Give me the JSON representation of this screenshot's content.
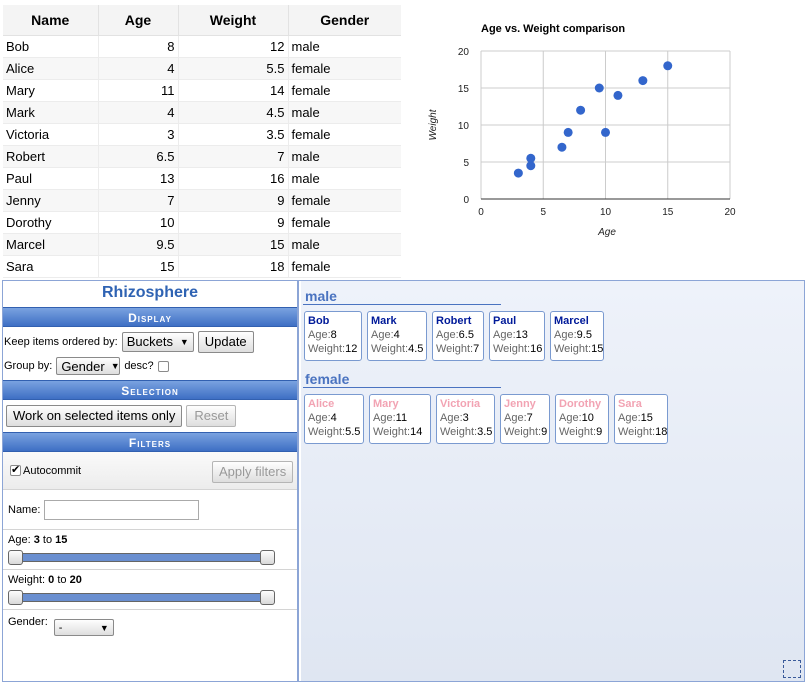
{
  "table": {
    "headers": [
      "Name",
      "Age",
      "Weight",
      "Gender"
    ],
    "rows": [
      [
        "Bob",
        "8",
        "12",
        "male"
      ],
      [
        "Alice",
        "4",
        "5.5",
        "female"
      ],
      [
        "Mary",
        "11",
        "14",
        "female"
      ],
      [
        "Mark",
        "4",
        "4.5",
        "male"
      ],
      [
        "Victoria",
        "3",
        "3.5",
        "female"
      ],
      [
        "Robert",
        "6.5",
        "7",
        "male"
      ],
      [
        "Paul",
        "13",
        "16",
        "male"
      ],
      [
        "Jenny",
        "7",
        "9",
        "female"
      ],
      [
        "Dorothy",
        "10",
        "9",
        "female"
      ],
      [
        "Marcel",
        "9.5",
        "15",
        "male"
      ],
      [
        "Sara",
        "15",
        "18",
        "female"
      ]
    ]
  },
  "chart_data": {
    "type": "scatter",
    "title": "Age vs. Weight comparison",
    "xlabel": "Age",
    "ylabel": "Weight",
    "xlim": [
      0,
      20
    ],
    "ylim": [
      0,
      20
    ],
    "xticks": [
      0,
      5,
      10,
      15,
      20
    ],
    "yticks": [
      0,
      5,
      10,
      15,
      20
    ],
    "grid": true,
    "point_color": "#3366cc",
    "points": [
      {
        "x": 8,
        "y": 12
      },
      {
        "x": 4,
        "y": 5.5
      },
      {
        "x": 11,
        "y": 14
      },
      {
        "x": 4,
        "y": 4.5
      },
      {
        "x": 3,
        "y": 3.5
      },
      {
        "x": 6.5,
        "y": 7
      },
      {
        "x": 13,
        "y": 16
      },
      {
        "x": 7,
        "y": 9
      },
      {
        "x": 10,
        "y": 9
      },
      {
        "x": 9.5,
        "y": 15
      },
      {
        "x": 15,
        "y": 18
      }
    ]
  },
  "rhizo": {
    "title": "Rhizosphere",
    "display": {
      "header": "Display",
      "order_label": "Keep items ordered by:",
      "order_value": "Buckets",
      "update_label": "Update",
      "groupby_label": "Group by:",
      "groupby_value": "Gender",
      "desc_label": "desc?"
    },
    "selection": {
      "header": "Selection",
      "work_label": "Work on selected items only",
      "reset_label": "Reset"
    },
    "filters": {
      "header": "Filters",
      "autocommit_label": "Autocommit",
      "apply_label": "Apply filters",
      "name_label": "Name:",
      "name_value": "",
      "age_label": "Age:",
      "age_min": "3",
      "age_to": "to",
      "age_max": "15",
      "weight_label": "Weight:",
      "weight_min": "0",
      "weight_to": "to",
      "weight_max": "20",
      "gender_label": "Gender:",
      "gender_value": "-"
    },
    "buckets": [
      {
        "label": "male",
        "gender": "male",
        "items": [
          {
            "name": "Bob",
            "age": "8",
            "weight": "12"
          },
          {
            "name": "Mark",
            "age": "4",
            "weight": "4.5"
          },
          {
            "name": "Robert",
            "age": "6.5",
            "weight": "7"
          },
          {
            "name": "Paul",
            "age": "13",
            "weight": "16"
          },
          {
            "name": "Marcel",
            "age": "9.5",
            "weight": "15"
          }
        ]
      },
      {
        "label": "female",
        "gender": "female",
        "items": [
          {
            "name": "Alice",
            "age": "4",
            "weight": "5.5"
          },
          {
            "name": "Mary",
            "age": "11",
            "weight": "14"
          },
          {
            "name": "Victoria",
            "age": "3",
            "weight": "3.5"
          },
          {
            "name": "Jenny",
            "age": "7",
            "weight": "9"
          },
          {
            "name": "Dorothy",
            "age": "10",
            "weight": "9"
          },
          {
            "name": "Sara",
            "age": "15",
            "weight": "18"
          }
        ]
      }
    ],
    "card_age_label": "Age:",
    "card_weight_label": "Weight:"
  }
}
